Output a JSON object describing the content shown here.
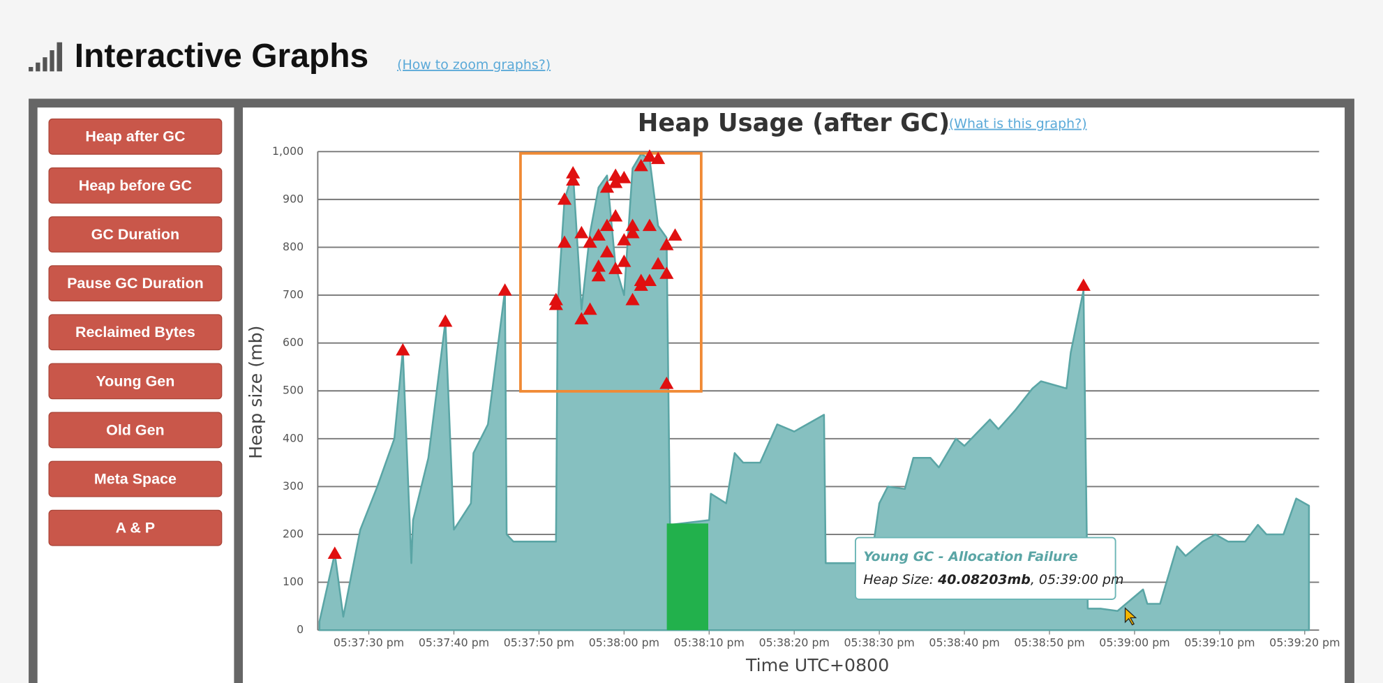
{
  "header": {
    "title": "Interactive Graphs",
    "link": "(How to zoom graphs?)"
  },
  "buttons": [
    "Heap after GC",
    "Heap before GC",
    "GC Duration",
    "Pause GC Duration",
    "Reclaimed Bytes",
    "Young Gen",
    "Old Gen",
    "Meta Space",
    "A & P"
  ],
  "chart_data": {
    "type": "area",
    "title": "Heap Usage (after GC)",
    "link": "(What is this graph?)",
    "x_label": "Time UTC+0800",
    "y_label": "Heap size (mb)",
    "xlim": [
      63444,
      63562
    ],
    "ylim": [
      0,
      1000
    ],
    "grid": true,
    "xticks": [
      {
        "value": 63450,
        "label": "05:37:30 pm"
      },
      {
        "value": 63460,
        "label": "05:37:40 pm"
      },
      {
        "value": 63470,
        "label": "05:37:50 pm"
      },
      {
        "value": 63480,
        "label": "05:38:00 pm"
      },
      {
        "value": 63490,
        "label": "05:38:10 pm"
      },
      {
        "value": 63500,
        "label": "05:38:20 pm"
      },
      {
        "value": 63510,
        "label": "05:38:30 pm"
      },
      {
        "value": 63520,
        "label": "05:38:40 pm"
      },
      {
        "value": 63530,
        "label": "05:38:50 pm"
      },
      {
        "value": 63540,
        "label": "05:39:00 pm"
      },
      {
        "value": 63550,
        "label": "05:39:10 pm"
      },
      {
        "value": 63560,
        "label": "05:39:20 pm"
      }
    ],
    "yticks": [
      0,
      100,
      200,
      300,
      400,
      500,
      600,
      700,
      800,
      900,
      {
        "value": 1000,
        "label": "1,000"
      }
    ],
    "series": [
      {
        "type": "area",
        "color": "#86c0c0",
        "stroke": "#5aa5a5",
        "x": [
          63444.2,
          63446,
          63447,
          63448,
          63449,
          63451,
          63453,
          63454,
          63455,
          63455.2,
          63457,
          63459,
          63460,
          63462,
          63462.3,
          63464,
          63466,
          63466.2,
          63467,
          63472,
          63472.2,
          63473,
          63474,
          63475,
          63476,
          63477,
          63478,
          63479,
          63480,
          63481,
          63482,
          63483,
          63484,
          63485,
          63485.2,
          63485.4,
          63490,
          63490.2,
          63492,
          63493,
          63494,
          63496,
          63498,
          63500,
          63501.5,
          63503.5,
          63503.7,
          63509,
          63510,
          63511,
          63513,
          63514,
          63516,
          63517,
          63519,
          63520,
          63523,
          63524,
          63526,
          63528,
          63529,
          63532,
          63532.5,
          63534,
          63534.5,
          63536,
          63538,
          63541,
          63541.5,
          63543,
          63545,
          63546,
          63548,
          63549.5,
          63551,
          63553,
          63554.5,
          63555.5,
          63557.5,
          63559,
          63560.5
        ],
        "values": [
          18,
          160,
          28,
          120,
          210,
          300,
          400,
          585,
          140,
          230,
          360,
          645,
          210,
          265,
          370,
          430,
          710,
          200,
          185,
          185,
          680,
          900,
          955,
          670,
          830,
          925,
          950,
          760,
          700,
          965,
          995,
          985,
          845,
          820,
          515,
          220,
          230,
          285,
          265,
          370,
          350,
          350,
          430,
          415,
          430,
          450,
          140,
          140,
          265,
          300,
          295,
          360,
          360,
          340,
          400,
          385,
          440,
          420,
          460,
          505,
          520,
          505,
          580,
          710,
          45,
          45,
          40,
          85,
          55,
          55,
          175,
          155,
          185,
          200,
          185,
          185,
          220,
          200,
          200,
          275,
          260
        ]
      },
      {
        "type": "scatter",
        "marker": "triangle",
        "color": "#e01010",
        "x": [
          63446,
          63454,
          63459,
          63466,
          63472,
          63472,
          63473,
          63474,
          63474,
          63473,
          63475,
          63476,
          63475,
          63476,
          63477,
          63477,
          63477,
          63478,
          63478,
          63478,
          63479,
          63479,
          63479,
          63479,
          63480,
          63480,
          63480,
          63481,
          63481,
          63481,
          63482,
          63482,
          63482,
          63483,
          63483,
          63483,
          63484,
          63484,
          63485,
          63485,
          63486,
          63485,
          63534
        ],
        "values": [
          160,
          585,
          645,
          710,
          690,
          680,
          900,
          955,
          940,
          810,
          650,
          670,
          830,
          810,
          760,
          740,
          825,
          790,
          845,
          925,
          935,
          950,
          865,
          755,
          815,
          770,
          945,
          690,
          830,
          845,
          720,
          730,
          970,
          990,
          845,
          730,
          985,
          765,
          745,
          805,
          825,
          515,
          720
        ]
      }
    ]
  },
  "tooltip": {
    "title": "Young GC - Allocation Failure",
    "parts": [
      "Heap Size: ",
      "40.08203mb",
      ", 05:39:00 pm"
    ]
  }
}
